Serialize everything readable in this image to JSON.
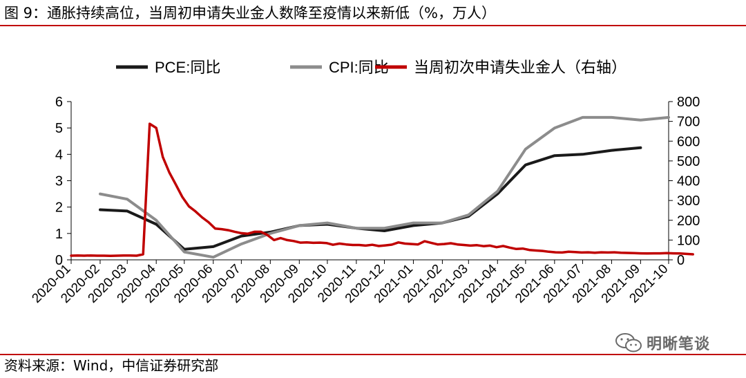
{
  "header": {
    "title": "图 9：通胀持续高位，当周初申请失业金人数降至疫情以来新低（%，万人）"
  },
  "footer": {
    "source": "资料来源：Wind，中信证券研究部",
    "watermark": "明晰笔谈",
    "watermark_icon": "wechat-icon"
  },
  "colors": {
    "accent_rule": "#c00000"
  },
  "chart_data": {
    "type": "line",
    "x_tick_labels": [
      "2020-01",
      "2020-02",
      "2020-03",
      "2020-04",
      "2020-05",
      "2020-06",
      "2020-07",
      "2020-08",
      "2020-09",
      "2020-10",
      "2020-11",
      "2020-12",
      "2021-01",
      "2021-02",
      "2021-03",
      "2021-04",
      "2021-05",
      "2021-06",
      "2021-07",
      "2021-08",
      "2021-09",
      "2021-10"
    ],
    "x_range": [
      "2020-01",
      "2021-10"
    ],
    "y_left": {
      "ylim": [
        0,
        6
      ],
      "ticks": [
        "0",
        "1",
        "2",
        "3",
        "4",
        "5",
        "6"
      ]
    },
    "y_right": {
      "ylim": [
        0,
        800
      ],
      "ticks": [
        "0",
        "100",
        "200",
        "300",
        "400",
        "500",
        "600",
        "700",
        "800"
      ]
    },
    "grid": false,
    "legend_position": "top",
    "series": [
      {
        "name": "PCE:同比",
        "color": "#1a1a1a",
        "axis": "left",
        "points": [
          [
            "2020-02",
            1.9
          ],
          [
            "2020-03",
            1.85
          ],
          [
            "2020-04",
            1.35
          ],
          [
            "2020-05",
            0.4
          ],
          [
            "2020-06",
            0.5
          ],
          [
            "2020-07",
            0.9
          ],
          [
            "2020-08",
            1.05
          ],
          [
            "2020-09",
            1.3
          ],
          [
            "2020-10",
            1.35
          ],
          [
            "2020-11",
            1.2
          ],
          [
            "2020-12",
            1.1
          ],
          [
            "2021-01",
            1.3
          ],
          [
            "2021-02",
            1.4
          ],
          [
            "2021-03",
            1.65
          ],
          [
            "2021-04",
            2.5
          ],
          [
            "2021-05",
            3.6
          ],
          [
            "2021-06",
            3.95
          ],
          [
            "2021-07",
            4.0
          ],
          [
            "2021-08",
            4.15
          ],
          [
            "2021-09",
            4.25
          ]
        ]
      },
      {
        "name": "CPI:同比",
        "color": "#8c8c8c",
        "axis": "left",
        "points": [
          [
            "2020-02",
            2.5
          ],
          [
            "2020-03",
            2.3
          ],
          [
            "2020-04",
            1.5
          ],
          [
            "2020-05",
            0.3
          ],
          [
            "2020-06",
            0.1
          ],
          [
            "2020-07",
            0.6
          ],
          [
            "2020-08",
            1.0
          ],
          [
            "2020-09",
            1.3
          ],
          [
            "2020-10",
            1.4
          ],
          [
            "2020-11",
            1.2
          ],
          [
            "2020-12",
            1.2
          ],
          [
            "2021-01",
            1.4
          ],
          [
            "2021-02",
            1.4
          ],
          [
            "2021-03",
            1.7
          ],
          [
            "2021-04",
            2.6
          ],
          [
            "2021-05",
            4.2
          ],
          [
            "2021-06",
            5.0
          ],
          [
            "2021-07",
            5.4
          ],
          [
            "2021-08",
            5.4
          ],
          [
            "2021-09",
            5.3
          ],
          [
            "2021-10",
            5.4
          ]
        ]
      },
      {
        "name": "当周初次申请失业金人（右轴）",
        "color": "#c00000",
        "axis": "right",
        "points": [
          [
            "2020-01-01",
            21
          ],
          [
            "2020-01-08",
            22
          ],
          [
            "2020-01-15",
            21
          ],
          [
            "2020-01-22",
            22
          ],
          [
            "2020-01-29",
            21
          ],
          [
            "2020-02-05",
            21
          ],
          [
            "2020-02-12",
            20
          ],
          [
            "2020-02-19",
            21
          ],
          [
            "2020-02-26",
            22
          ],
          [
            "2020-03-04",
            22
          ],
          [
            "2020-03-11",
            21
          ],
          [
            "2020-03-18",
            28
          ],
          [
            "2020-03-25",
            688
          ],
          [
            "2020-04-01",
            667
          ],
          [
            "2020-04-08",
            520
          ],
          [
            "2020-04-15",
            442
          ],
          [
            "2020-04-22",
            380
          ],
          [
            "2020-04-29",
            317
          ],
          [
            "2020-05-06",
            270
          ],
          [
            "2020-05-13",
            245
          ],
          [
            "2020-05-20",
            215
          ],
          [
            "2020-05-27",
            190
          ],
          [
            "2020-06-03",
            158
          ],
          [
            "2020-06-10",
            155
          ],
          [
            "2020-06-17",
            150
          ],
          [
            "2020-06-24",
            142
          ],
          [
            "2020-07-01",
            135
          ],
          [
            "2020-07-08",
            132
          ],
          [
            "2020-07-15",
            142
          ],
          [
            "2020-07-22",
            142
          ],
          [
            "2020-07-29",
            125
          ],
          [
            "2020-08-05",
            100
          ],
          [
            "2020-08-12",
            110
          ],
          [
            "2020-08-19",
            100
          ],
          [
            "2020-08-26",
            95
          ],
          [
            "2020-09-02",
            87
          ],
          [
            "2020-09-09",
            88
          ],
          [
            "2020-09-16",
            86
          ],
          [
            "2020-09-23",
            87
          ],
          [
            "2020-09-30",
            85
          ],
          [
            "2020-10-07",
            76
          ],
          [
            "2020-10-14",
            82
          ],
          [
            "2020-10-21",
            78
          ],
          [
            "2020-10-28",
            75
          ],
          [
            "2020-11-04",
            75
          ],
          [
            "2020-11-11",
            72
          ],
          [
            "2020-11-18",
            76
          ],
          [
            "2020-11-25",
            70
          ],
          [
            "2020-12-02",
            73
          ],
          [
            "2020-12-09",
            77
          ],
          [
            "2020-12-16",
            88
          ],
          [
            "2020-12-23",
            82
          ],
          [
            "2020-12-30",
            80
          ],
          [
            "2021-01-06",
            78
          ],
          [
            "2021-01-13",
            94
          ],
          [
            "2021-01-20",
            86
          ],
          [
            "2021-01-27",
            78
          ],
          [
            "2021-02-03",
            80
          ],
          [
            "2021-02-10",
            84
          ],
          [
            "2021-02-17",
            78
          ],
          [
            "2021-02-24",
            75
          ],
          [
            "2021-03-03",
            72
          ],
          [
            "2021-03-10",
            74
          ],
          [
            "2021-03-17",
            69
          ],
          [
            "2021-03-24",
            72
          ],
          [
            "2021-03-31",
            64
          ],
          [
            "2021-04-07",
            70
          ],
          [
            "2021-04-14",
            62
          ],
          [
            "2021-04-21",
            55
          ],
          [
            "2021-04-28",
            57
          ],
          [
            "2021-05-05",
            50
          ],
          [
            "2021-05-12",
            47
          ],
          [
            "2021-05-19",
            45
          ],
          [
            "2021-05-26",
            41
          ],
          [
            "2021-06-02",
            38
          ],
          [
            "2021-06-09",
            37
          ],
          [
            "2021-06-16",
            41
          ],
          [
            "2021-06-23",
            39
          ],
          [
            "2021-06-30",
            37
          ],
          [
            "2021-07-07",
            38
          ],
          [
            "2021-07-14",
            36
          ],
          [
            "2021-07-21",
            38
          ],
          [
            "2021-07-28",
            37
          ],
          [
            "2021-08-04",
            38
          ],
          [
            "2021-08-11",
            36
          ],
          [
            "2021-08-18",
            35
          ],
          [
            "2021-08-25",
            34
          ],
          [
            "2021-09-01",
            33
          ],
          [
            "2021-09-08",
            32
          ],
          [
            "2021-09-15",
            33
          ],
          [
            "2021-09-22",
            33
          ],
          [
            "2021-09-29",
            34
          ],
          [
            "2021-10-06",
            33
          ],
          [
            "2021-10-13",
            32
          ],
          [
            "2021-10-20",
            30
          ],
          [
            "2021-10-27",
            28
          ]
        ]
      }
    ]
  }
}
